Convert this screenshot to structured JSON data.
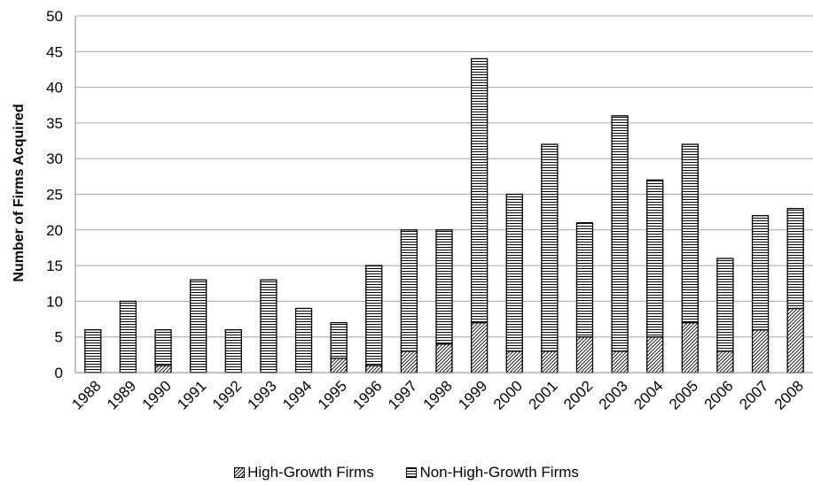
{
  "chart_data": {
    "type": "bar",
    "stacked": true,
    "ylabel": "Number of Firms Acquired",
    "xlabel": "",
    "ylim": [
      0,
      50
    ],
    "yticks": [
      "0",
      "5",
      "10",
      "15",
      "20",
      "25",
      "30",
      "35",
      "40",
      "45",
      "50"
    ],
    "grid": "horizontal",
    "legend_position": "bottom",
    "categories": [
      "1988",
      "1989",
      "1990",
      "1991",
      "1992",
      "1993",
      "1994",
      "1995",
      "1996",
      "1997",
      "1998",
      "1999",
      "2000",
      "2001",
      "2002",
      "2003",
      "2004",
      "2005",
      "2006",
      "2007",
      "2008"
    ],
    "series": [
      {
        "name": "High-Growth Firms",
        "pattern": "diagonal-hatch",
        "values": [
          0,
          0,
          1,
          0,
          0,
          0,
          0,
          2,
          1,
          3,
          4,
          7,
          3,
          3,
          5,
          3,
          5,
          7,
          3,
          6,
          9
        ]
      },
      {
        "name": "Non-High-Growth Firms",
        "pattern": "horizontal-hatch",
        "values": [
          6,
          10,
          5,
          13,
          6,
          13,
          9,
          5,
          14,
          17,
          16,
          37,
          22,
          29,
          16,
          33,
          22,
          25,
          13,
          16,
          14
        ]
      }
    ],
    "colors": {
      "fill": "#ffffff",
      "stroke": "#000000",
      "grid": "#a6a6a6"
    }
  }
}
